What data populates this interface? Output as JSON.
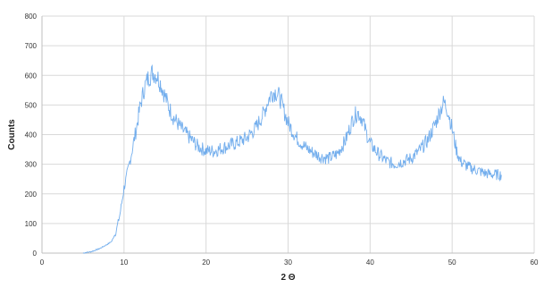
{
  "chart_data": {
    "type": "line",
    "title": "",
    "xlabel": "2 Θ",
    "ylabel": "Counts",
    "xlim": [
      0,
      60
    ],
    "ylim": [
      0,
      800
    ],
    "x_ticks": [
      "0",
      "10",
      "20",
      "30",
      "40",
      "50",
      "60"
    ],
    "y_ticks": [
      "0",
      "100",
      "200",
      "300",
      "400",
      "500",
      "600",
      "700",
      "800"
    ],
    "grid": true,
    "legend": "none",
    "series": [
      {
        "color": "#5aa0ea",
        "x": [
          5,
          6,
          7,
          8,
          8.5,
          9,
          9.5,
          10,
          10.5,
          11,
          11.5,
          12,
          12.5,
          13,
          13.5,
          14,
          14.5,
          15,
          15.5,
          16,
          17,
          18,
          19,
          20,
          21,
          22,
          23,
          24,
          25,
          26,
          27,
          27.5,
          28,
          28.5,
          29,
          29.5,
          30,
          31,
          32,
          33,
          34,
          35,
          36,
          37,
          37.5,
          38,
          38.5,
          39,
          39.5,
          40,
          41,
          42,
          43,
          44,
          45,
          46,
          47,
          48,
          48.5,
          49,
          49.5,
          50,
          50.5,
          51,
          52,
          53,
          54,
          55,
          56
        ],
        "y": [
          0,
          5,
          15,
          30,
          40,
          70,
          130,
          220,
          280,
          350,
          420,
          500,
          560,
          595,
          610,
          600,
          570,
          530,
          490,
          460,
          420,
          390,
          360,
          345,
          345,
          355,
          365,
          375,
          390,
          420,
          470,
          510,
          540,
          545,
          525,
          480,
          440,
          390,
          360,
          340,
          325,
          320,
          335,
          380,
          420,
          460,
          475,
          455,
          410,
          370,
          335,
          310,
          300,
          310,
          320,
          345,
          380,
          440,
          480,
          510,
          480,
          420,
          350,
          310,
          290,
          280,
          270,
          265,
          265
        ]
      }
    ]
  }
}
